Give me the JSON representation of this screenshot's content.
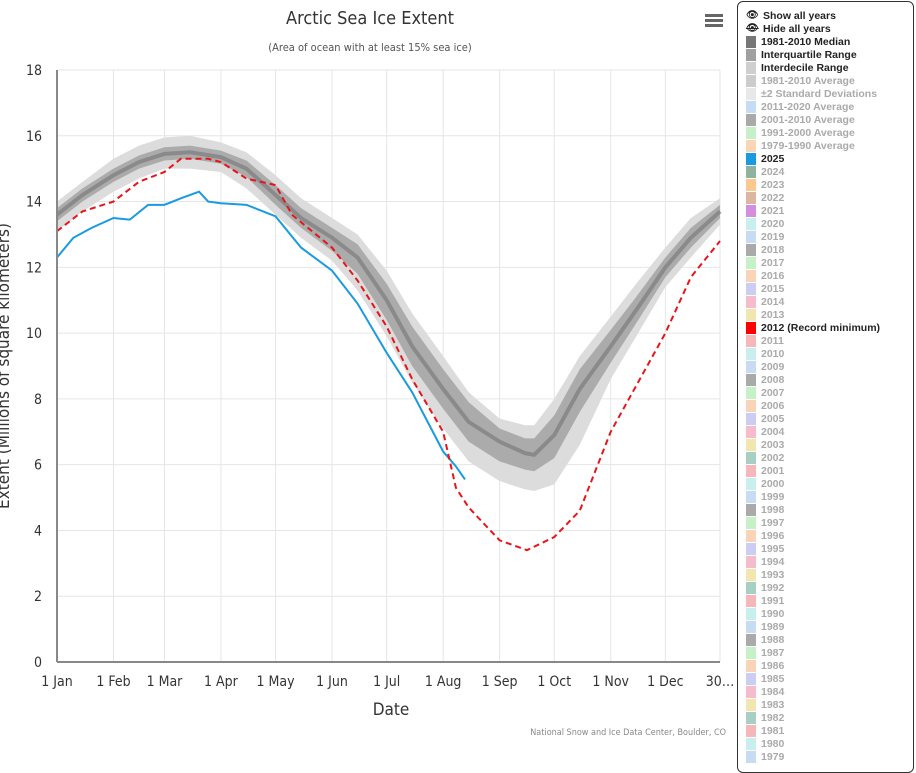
{
  "chart_data": {
    "type": "line",
    "title": "Arctic Sea Ice Extent",
    "subtitle": "(Area of ocean with at least 15% sea ice)",
    "xlabel": "Date",
    "ylabel": "Extent (Millions of square kilometers)",
    "credit": "National Snow and Ice Data Center, Boulder, CO",
    "ylim": [
      0,
      18
    ],
    "yticks": [
      "0",
      "2",
      "4",
      "6",
      "8",
      "10",
      "12",
      "14",
      "16",
      "18"
    ],
    "xticks": [
      "1 Jan",
      "1 Feb",
      "1 Mar",
      "1 Apr",
      "1 May",
      "1 Jun",
      "1 Jul",
      "1 Aug",
      "1 Sep",
      "1 Oct",
      "1 Nov",
      "1 Dec",
      "30…"
    ],
    "grid": true,
    "legend_position": "right",
    "band_dates": [
      "01-01",
      "01-15",
      "02-01",
      "02-15",
      "03-01",
      "03-15",
      "04-01",
      "04-15",
      "05-01",
      "05-15",
      "06-01",
      "06-15",
      "07-01",
      "07-15",
      "08-01",
      "08-15",
      "09-01",
      "09-15",
      "09-20",
      "10-01",
      "10-15",
      "11-01",
      "11-15",
      "12-01",
      "12-15",
      "12-31"
    ],
    "median": [
      13.6,
      14.2,
      14.8,
      15.2,
      15.45,
      15.5,
      15.35,
      15.0,
      14.2,
      13.5,
      12.9,
      12.3,
      11.0,
      9.6,
      8.3,
      7.3,
      6.7,
      6.35,
      6.3,
      6.9,
      8.3,
      9.6,
      10.7,
      12.0,
      12.9,
      13.7
    ],
    "interquartile_low": [
      13.4,
      14.0,
      14.6,
      15.0,
      15.25,
      15.3,
      15.15,
      14.75,
      13.9,
      13.2,
      12.5,
      11.8,
      10.4,
      9.0,
      7.7,
      6.7,
      6.1,
      5.85,
      5.8,
      6.2,
      7.6,
      9.1,
      10.3,
      11.7,
      12.6,
      13.5
    ],
    "interquartile_high": [
      13.8,
      14.4,
      15.0,
      15.4,
      15.65,
      15.7,
      15.55,
      15.25,
      14.5,
      13.8,
      13.2,
      12.7,
      11.5,
      10.2,
      8.9,
      7.9,
      7.1,
      6.8,
      6.8,
      7.5,
      8.9,
      10.1,
      11.1,
      12.3,
      13.2,
      13.9
    ],
    "interdecile_low": [
      13.1,
      13.7,
      14.3,
      14.7,
      15.0,
      15.0,
      14.9,
      14.4,
      13.6,
      12.9,
      12.2,
      11.3,
      9.9,
      8.5,
      7.1,
      6.1,
      5.5,
      5.25,
      5.2,
      5.4,
      6.6,
      8.6,
      9.9,
      11.4,
      12.3,
      13.3
    ],
    "interdecile_high": [
      14.0,
      14.6,
      15.3,
      15.7,
      15.95,
      16.0,
      15.8,
      15.5,
      14.8,
      14.1,
      13.5,
      13.0,
      11.9,
      10.6,
      9.3,
      8.2,
      7.4,
      7.2,
      7.2,
      8.0,
      9.3,
      10.5,
      11.5,
      12.6,
      13.5,
      14.1
    ],
    "series": [
      {
        "name": "2025",
        "color": "#1a9ae0",
        "dash": false,
        "points": [
          [
            "01-01",
            12.3
          ],
          [
            "01-10",
            12.9
          ],
          [
            "01-20",
            13.2
          ],
          [
            "02-01",
            13.5
          ],
          [
            "02-10",
            13.45
          ],
          [
            "02-20",
            13.9
          ],
          [
            "03-01",
            13.9
          ],
          [
            "03-10",
            14.1
          ],
          [
            "03-20",
            14.3
          ],
          [
            "03-25",
            14.0
          ],
          [
            "04-01",
            13.95
          ],
          [
            "04-15",
            13.9
          ],
          [
            "05-01",
            13.55
          ],
          [
            "05-15",
            12.6
          ],
          [
            "06-01",
            11.9
          ],
          [
            "06-15",
            10.9
          ],
          [
            "07-01",
            9.4
          ],
          [
            "07-15",
            8.2
          ],
          [
            "08-01",
            6.4
          ],
          [
            "08-08",
            5.95
          ],
          [
            "08-13",
            5.55
          ]
        ]
      },
      {
        "name": "2012 (Record minimum)",
        "color": "#e8141b",
        "dash": true,
        "points": [
          [
            "01-01",
            13.1
          ],
          [
            "01-15",
            13.7
          ],
          [
            "02-01",
            14.0
          ],
          [
            "02-15",
            14.6
          ],
          [
            "03-01",
            14.9
          ],
          [
            "03-10",
            15.3
          ],
          [
            "03-25",
            15.3
          ],
          [
            "04-01",
            15.2
          ],
          [
            "04-15",
            14.7
          ],
          [
            "05-01",
            14.5
          ],
          [
            "05-10",
            13.6
          ],
          [
            "06-01",
            12.6
          ],
          [
            "06-15",
            11.6
          ],
          [
            "07-01",
            10.2
          ],
          [
            "07-15",
            8.6
          ],
          [
            "08-01",
            7.0
          ],
          [
            "08-08",
            5.3
          ],
          [
            "08-15",
            4.7
          ],
          [
            "09-01",
            3.7
          ],
          [
            "09-16",
            3.4
          ],
          [
            "10-01",
            3.8
          ],
          [
            "10-15",
            4.6
          ],
          [
            "11-01",
            7.0
          ],
          [
            "11-15",
            8.4
          ],
          [
            "12-01",
            10.0
          ],
          [
            "12-15",
            11.7
          ],
          [
            "12-31",
            12.8
          ]
        ]
      }
    ],
    "colors": {
      "median": "#8a8a8a",
      "interquartile": "#ababab",
      "interdecile": "#dcdcdc"
    }
  },
  "menu_icon": "hamburger-icon",
  "legend": {
    "show_all": "Show all years",
    "hide_all": "Hide all years",
    "items": [
      {
        "label": "1981-2010 Median",
        "color": "#777777",
        "active": true
      },
      {
        "label": "Interquartile Range",
        "color": "#a0a0a0",
        "active": true
      },
      {
        "label": "Interdecile Range",
        "color": "#cfcfcf",
        "active": true
      },
      {
        "label": "1981-2010 Average",
        "color": "#cccccc",
        "active": false
      },
      {
        "label": "±2 Standard Deviations",
        "color": "#e8e8e8",
        "active": false
      },
      {
        "label": "2011-2020 Average",
        "color": "#c6dcf5",
        "active": false
      },
      {
        "label": "2001-2010 Average",
        "color": "#aaaaaa",
        "active": false
      },
      {
        "label": "1991-2000 Average",
        "color": "#c8f0c8",
        "active": false
      },
      {
        "label": "1979-1990 Average",
        "color": "#f9d6b8",
        "active": false
      },
      {
        "label": "2025",
        "color": "#1a9ae0",
        "active": true
      },
      {
        "label": "2024",
        "color": "#8fb3a0",
        "active": false
      },
      {
        "label": "2023",
        "color": "#fbc88f",
        "active": false
      },
      {
        "label": "2022",
        "color": "#dcb6a0",
        "active": false
      },
      {
        "label": "2021",
        "color": "#d48ede",
        "active": false
      },
      {
        "label": "2020",
        "color": "#c9eeee",
        "active": false
      },
      {
        "label": "2019",
        "color": "#c7dbf3",
        "active": false
      },
      {
        "label": "2018",
        "color": "#aaaaaa",
        "active": false
      },
      {
        "label": "2017",
        "color": "#c6f0c6",
        "active": false
      },
      {
        "label": "2016",
        "color": "#f9d4b8",
        "active": false
      },
      {
        "label": "2015",
        "color": "#cccdf2",
        "active": false
      },
      {
        "label": "2014",
        "color": "#f6bccb",
        "active": false
      },
      {
        "label": "2013",
        "color": "#f1e6b0",
        "active": false
      },
      {
        "label": "2012 (Record minimum)",
        "color": "#ff0000",
        "active": true
      },
      {
        "label": "2011",
        "color": "#f6b7bb",
        "active": false
      },
      {
        "label": "2010",
        "color": "#c9eeee",
        "active": false
      },
      {
        "label": "2009",
        "color": "#c7dbf3",
        "active": false
      },
      {
        "label": "2008",
        "color": "#aaaaaa",
        "active": false
      },
      {
        "label": "2007",
        "color": "#c6f0c6",
        "active": false
      },
      {
        "label": "2006",
        "color": "#f9d4b8",
        "active": false
      },
      {
        "label": "2005",
        "color": "#cccdf2",
        "active": false
      },
      {
        "label": "2004",
        "color": "#f6bccb",
        "active": false
      },
      {
        "label": "2003",
        "color": "#f1e6b0",
        "active": false
      },
      {
        "label": "2002",
        "color": "#a7cfc4",
        "active": false
      },
      {
        "label": "2001",
        "color": "#f6b7bb",
        "active": false
      },
      {
        "label": "2000",
        "color": "#c9eeee",
        "active": false
      },
      {
        "label": "1999",
        "color": "#c7dbf3",
        "active": false
      },
      {
        "label": "1998",
        "color": "#aaaaaa",
        "active": false
      },
      {
        "label": "1997",
        "color": "#c6f0c6",
        "active": false
      },
      {
        "label": "1996",
        "color": "#f9d4b8",
        "active": false
      },
      {
        "label": "1995",
        "color": "#cccdf2",
        "active": false
      },
      {
        "label": "1994",
        "color": "#f6bccb",
        "active": false
      },
      {
        "label": "1993",
        "color": "#f1e6b0",
        "active": false
      },
      {
        "label": "1992",
        "color": "#a7cfc4",
        "active": false
      },
      {
        "label": "1991",
        "color": "#f6b7bb",
        "active": false
      },
      {
        "label": "1990",
        "color": "#c9eeee",
        "active": false
      },
      {
        "label": "1989",
        "color": "#c7dbf3",
        "active": false
      },
      {
        "label": "1988",
        "color": "#aaaaaa",
        "active": false
      },
      {
        "label": "1987",
        "color": "#c6f0c6",
        "active": false
      },
      {
        "label": "1986",
        "color": "#f9d4b8",
        "active": false
      },
      {
        "label": "1985",
        "color": "#cccdf2",
        "active": false
      },
      {
        "label": "1984",
        "color": "#f6bccb",
        "active": false
      },
      {
        "label": "1983",
        "color": "#f1e6b0",
        "active": false
      },
      {
        "label": "1982",
        "color": "#a7cfc4",
        "active": false
      },
      {
        "label": "1981",
        "color": "#f6b7bb",
        "active": false
      },
      {
        "label": "1980",
        "color": "#c9eeee",
        "active": false
      },
      {
        "label": "1979",
        "color": "#c7dbf3",
        "active": false
      }
    ]
  }
}
